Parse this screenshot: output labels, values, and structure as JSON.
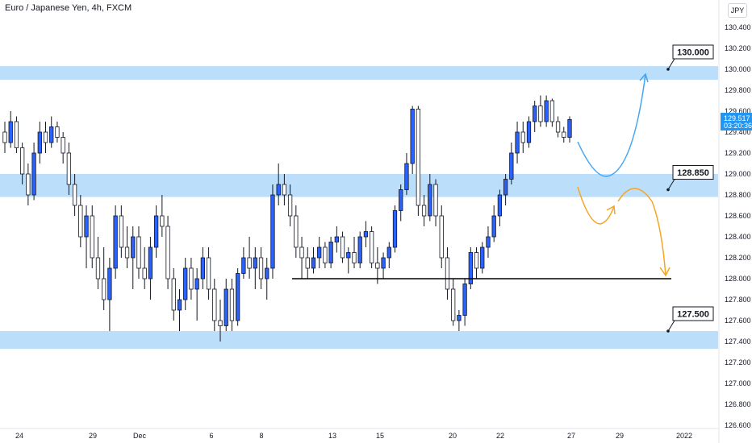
{
  "header": {
    "symbol_title": "Euro / Japanese Yen, 4h, FXCM",
    "currency_badge": "JPY"
  },
  "price_tag": {
    "value": "129.517",
    "countdown": "03:20:36",
    "color": "#2196f3"
  },
  "colors": {
    "zone": "#bbdefb",
    "candle_up": "#2962ff",
    "candle_down": "#ffffff",
    "wick": "#131722",
    "support_line": "#000000",
    "bull_path": "#42a5f5",
    "bear_path": "#f5a623"
  },
  "chart_data": {
    "type": "candlestick",
    "title": "Euro / Japanese Yen, 4h, FXCM",
    "ylim": [
      126.6,
      130.6
    ],
    "y_ticks": [
      "130.400",
      "130.200",
      "130.000",
      "129.800",
      "129.600",
      "129.400",
      "129.200",
      "129.000",
      "128.800",
      "128.600",
      "128.400",
      "128.200",
      "128.000",
      "127.800",
      "127.600",
      "127.400",
      "127.200",
      "127.000",
      "126.800",
      "126.600"
    ],
    "x_ticks": [
      "24",
      "29",
      "Dec",
      "6",
      "8",
      "13",
      "15",
      "20",
      "22",
      "27",
      "29",
      "2022"
    ],
    "zones": [
      {
        "label": "130.000",
        "low": 129.9,
        "high": 130.03
      },
      {
        "label": "128.850",
        "low": 128.78,
        "high": 129.0
      },
      {
        "label": "127.500",
        "low": 127.33,
        "high": 127.5
      }
    ],
    "support_level": 128.0,
    "candles": [
      [
        129.4,
        129.5,
        129.2,
        129.3
      ],
      [
        129.3,
        129.6,
        129.25,
        129.5
      ],
      [
        129.5,
        129.55,
        129.2,
        129.25
      ],
      [
        129.25,
        129.3,
        128.9,
        129.0
      ],
      [
        129.0,
        129.1,
        128.7,
        128.8
      ],
      [
        128.8,
        129.3,
        128.75,
        129.2
      ],
      [
        129.2,
        129.5,
        129.1,
        129.4
      ],
      [
        129.4,
        129.5,
        129.2,
        129.3
      ],
      [
        129.3,
        129.55,
        129.25,
        129.45
      ],
      [
        129.45,
        129.5,
        129.3,
        129.35
      ],
      [
        129.35,
        129.4,
        129.1,
        129.2
      ],
      [
        129.2,
        129.3,
        128.8,
        128.9
      ],
      [
        128.9,
        129.0,
        128.6,
        128.7
      ],
      [
        128.7,
        128.8,
        128.3,
        128.4
      ],
      [
        128.4,
        128.7,
        128.1,
        128.6
      ],
      [
        128.6,
        128.7,
        128.1,
        128.2
      ],
      [
        128.2,
        128.4,
        127.9,
        128.0
      ],
      [
        128.0,
        128.3,
        127.7,
        127.8
      ],
      [
        127.8,
        128.2,
        127.5,
        128.1
      ],
      [
        128.1,
        128.7,
        128.0,
        128.6
      ],
      [
        128.6,
        128.7,
        128.2,
        128.3
      ],
      [
        128.3,
        128.5,
        128.1,
        128.2
      ],
      [
        128.2,
        128.5,
        127.9,
        128.4
      ],
      [
        128.4,
        128.5,
        128.0,
        128.1
      ],
      [
        128.1,
        128.3,
        127.9,
        128.0
      ],
      [
        128.0,
        128.4,
        127.8,
        128.3
      ],
      [
        128.3,
        128.7,
        128.2,
        128.6
      ],
      [
        128.6,
        128.8,
        128.4,
        128.5
      ],
      [
        128.5,
        128.6,
        127.9,
        128.0
      ],
      [
        128.0,
        128.1,
        127.6,
        127.7
      ],
      [
        127.7,
        127.9,
        127.5,
        127.8
      ],
      [
        127.8,
        128.2,
        127.7,
        128.1
      ],
      [
        128.1,
        128.2,
        127.8,
        127.9
      ],
      [
        127.9,
        128.1,
        127.6,
        128.0
      ],
      [
        128.0,
        128.3,
        127.9,
        128.2
      ],
      [
        128.2,
        128.3,
        127.8,
        127.9
      ],
      [
        127.9,
        128.0,
        127.5,
        127.6
      ],
      [
        127.6,
        127.8,
        127.4,
        127.55
      ],
      [
        127.55,
        128.0,
        127.5,
        127.9
      ],
      [
        127.9,
        128.0,
        127.5,
        127.6
      ],
      [
        127.6,
        128.1,
        127.55,
        128.05
      ],
      [
        128.05,
        128.3,
        128.0,
        128.2
      ],
      [
        128.2,
        128.4,
        128.0,
        128.1
      ],
      [
        128.1,
        128.3,
        127.9,
        128.2
      ],
      [
        128.2,
        128.3,
        127.9,
        128.0
      ],
      [
        128.0,
        128.2,
        127.8,
        128.1
      ],
      [
        128.1,
        128.9,
        128.0,
        128.8
      ],
      [
        128.8,
        129.1,
        128.7,
        128.9
      ],
      [
        128.9,
        129.0,
        128.7,
        128.8
      ],
      [
        128.8,
        128.9,
        128.5,
        128.6
      ],
      [
        128.6,
        128.7,
        128.2,
        128.3
      ],
      [
        128.3,
        128.4,
        128.0,
        128.2
      ],
      [
        128.2,
        128.3,
        128.0,
        128.1
      ],
      [
        128.1,
        128.3,
        128.05,
        128.2
      ],
      [
        128.2,
        128.4,
        128.1,
        128.3
      ],
      [
        128.3,
        128.35,
        128.1,
        128.15
      ],
      [
        128.15,
        128.4,
        128.1,
        128.35
      ],
      [
        128.35,
        128.5,
        128.25,
        128.4
      ],
      [
        128.4,
        128.45,
        128.15,
        128.2
      ],
      [
        128.2,
        128.3,
        128.05,
        128.25
      ],
      [
        128.25,
        128.4,
        128.1,
        128.15
      ],
      [
        128.15,
        128.45,
        128.1,
        128.4
      ],
      [
        128.4,
        128.55,
        128.3,
        128.45
      ],
      [
        128.45,
        128.5,
        128.1,
        128.15
      ],
      [
        128.15,
        128.3,
        127.95,
        128.1
      ],
      [
        128.1,
        128.25,
        128.0,
        128.2
      ],
      [
        128.2,
        128.35,
        128.1,
        128.3
      ],
      [
        128.3,
        128.7,
        128.25,
        128.65
      ],
      [
        128.65,
        128.9,
        128.55,
        128.85
      ],
      [
        128.85,
        129.2,
        128.8,
        129.1
      ],
      [
        129.1,
        129.65,
        129.0,
        129.62
      ],
      [
        129.62,
        129.65,
        128.6,
        128.7
      ],
      [
        128.7,
        128.8,
        128.5,
        128.6
      ],
      [
        128.6,
        129.0,
        128.55,
        128.9
      ],
      [
        128.9,
        128.95,
        128.5,
        128.6
      ],
      [
        128.6,
        128.7,
        128.1,
        128.2
      ],
      [
        128.2,
        128.3,
        127.8,
        127.9
      ],
      [
        127.9,
        128.0,
        127.55,
        127.6
      ],
      [
        127.6,
        127.7,
        127.5,
        127.65
      ],
      [
        127.65,
        128.0,
        127.55,
        127.95
      ],
      [
        127.95,
        128.3,
        127.9,
        128.25
      ],
      [
        128.25,
        128.3,
        128.0,
        128.1
      ],
      [
        128.1,
        128.35,
        128.05,
        128.3
      ],
      [
        128.3,
        128.5,
        128.2,
        128.4
      ],
      [
        128.4,
        128.7,
        128.35,
        128.6
      ],
      [
        128.6,
        128.85,
        128.5,
        128.8
      ],
      [
        128.8,
        129.0,
        128.7,
        128.95
      ],
      [
        128.95,
        129.3,
        128.9,
        129.2
      ],
      [
        129.2,
        129.5,
        129.1,
        129.4
      ],
      [
        129.4,
        129.5,
        129.2,
        129.3
      ],
      [
        129.3,
        129.55,
        129.25,
        129.5
      ],
      [
        129.5,
        129.7,
        129.4,
        129.65
      ],
      [
        129.65,
        129.75,
        129.45,
        129.5
      ],
      [
        129.5,
        129.75,
        129.45,
        129.7
      ],
      [
        129.7,
        129.72,
        129.45,
        129.5
      ],
      [
        129.5,
        129.55,
        129.35,
        129.4
      ],
      [
        129.4,
        129.45,
        129.3,
        129.35
      ],
      [
        129.35,
        129.55,
        129.3,
        129.52
      ]
    ]
  }
}
